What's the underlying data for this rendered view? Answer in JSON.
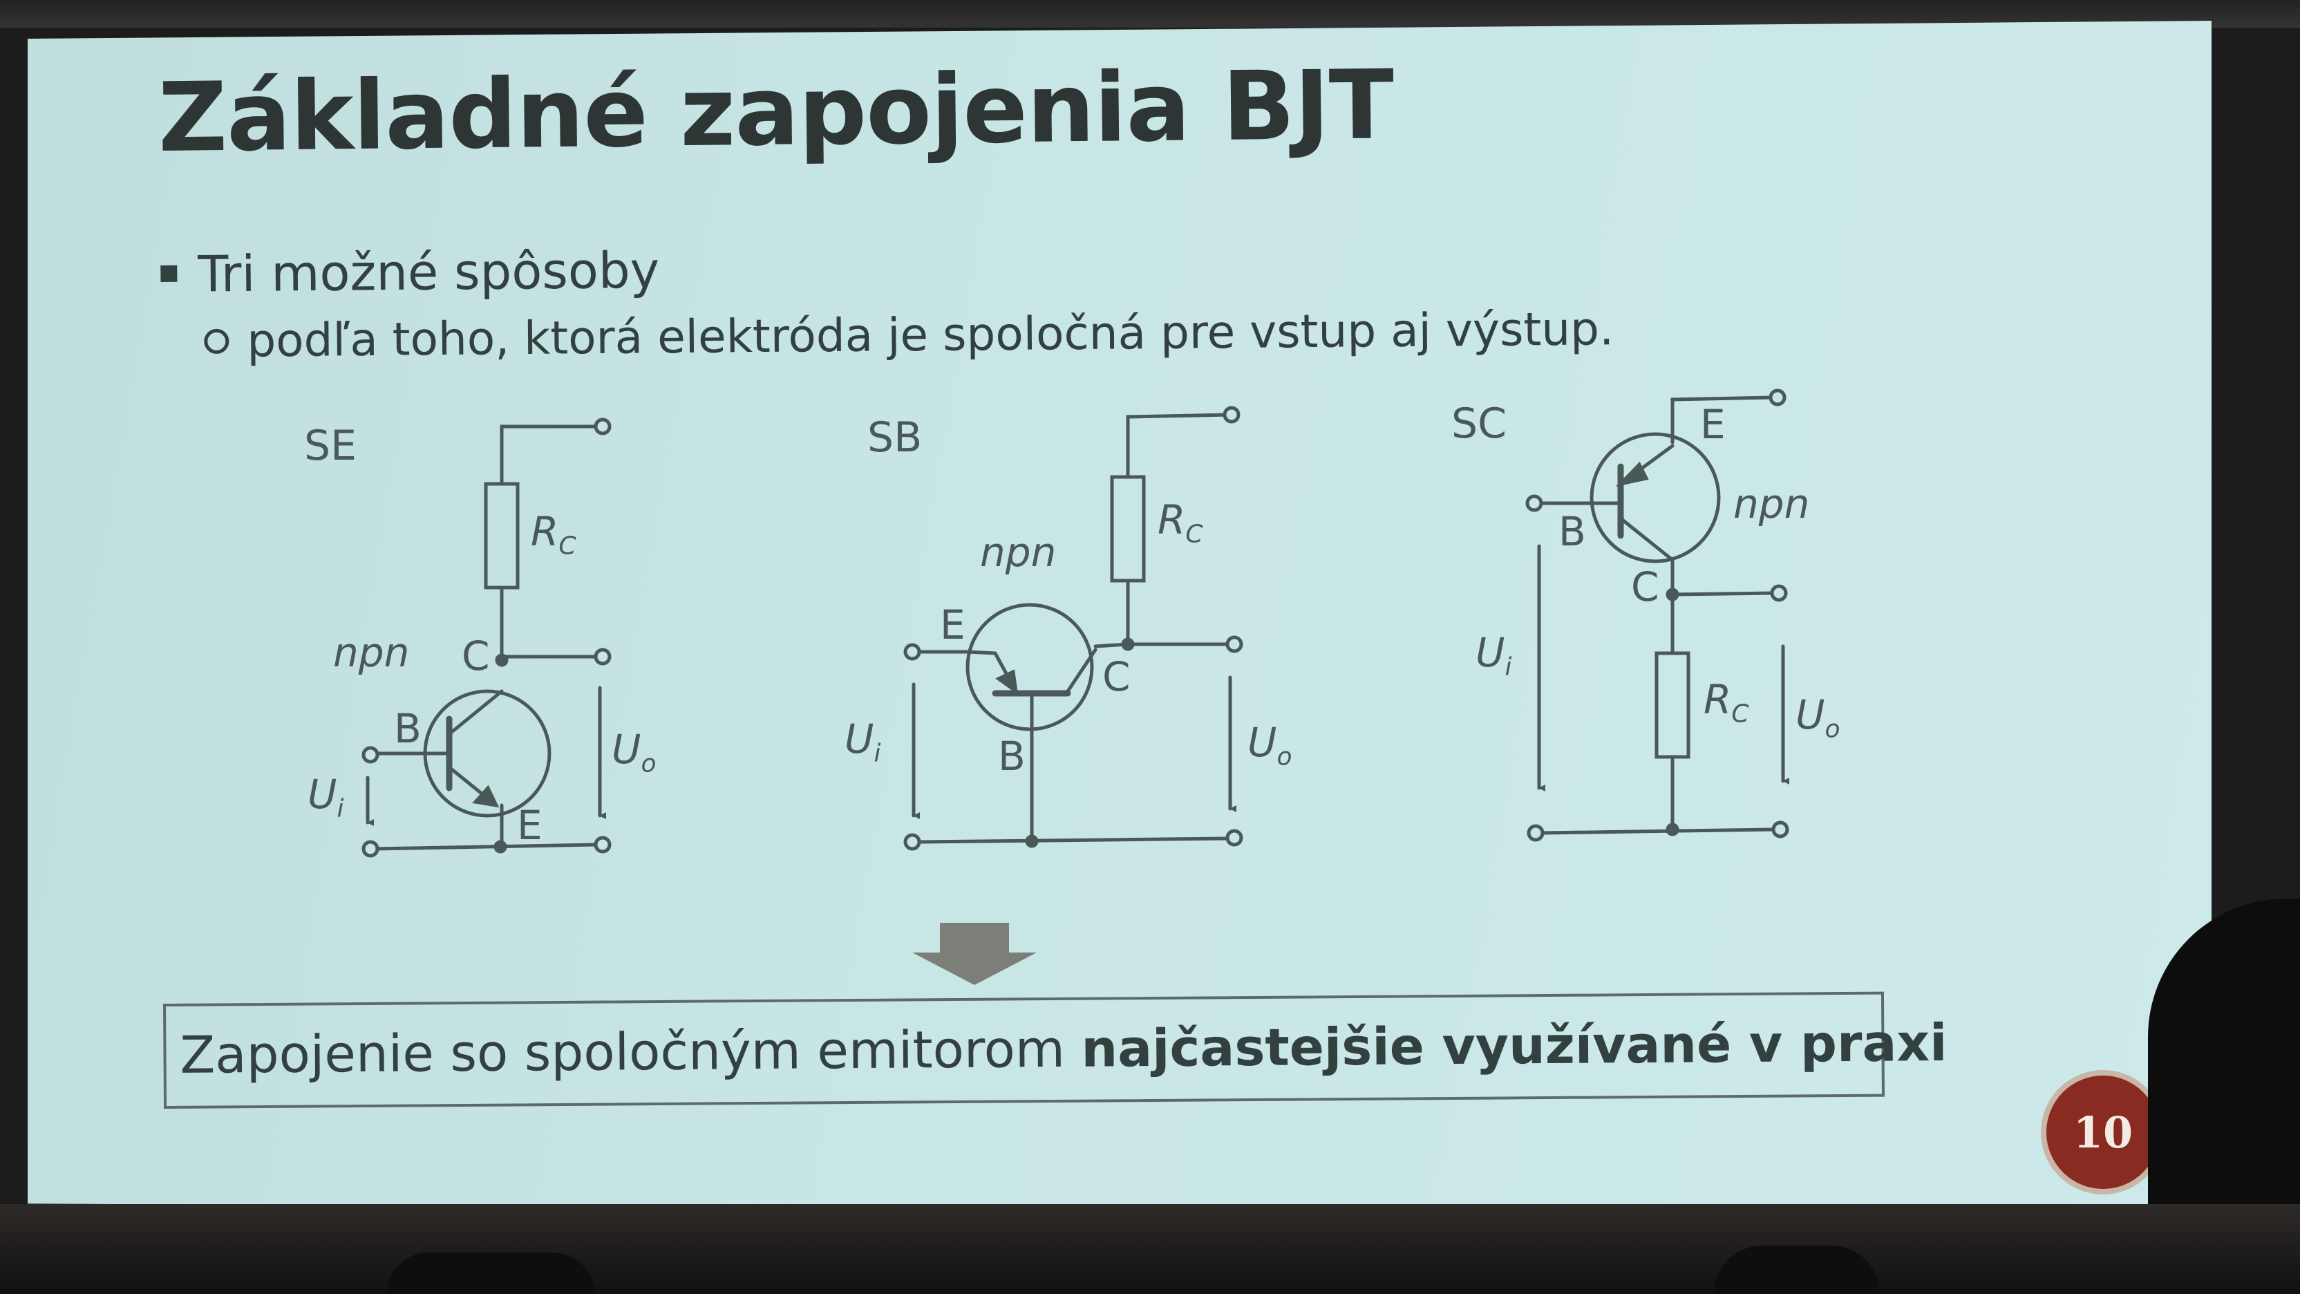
{
  "slide": {
    "title": "Základné zapojenia BJT",
    "bullet": "Tri možné spôsoby",
    "sub_bullet": "podľa toho, ktorá elektróda je spoločná pre vstup aj výstup.",
    "circuits": [
      {
        "name": "SE",
        "resistor_label": "R",
        "resistor_sub": "C",
        "type_label": "npn",
        "terminals": {
          "collector": "C",
          "base": "B",
          "emitter": "E"
        },
        "input_label": "U",
        "input_sub": "i",
        "output_label": "U",
        "output_sub": "o"
      },
      {
        "name": "SB",
        "resistor_label": "R",
        "resistor_sub": "C",
        "type_label": "npn",
        "terminals": {
          "collector": "C",
          "base": "B",
          "emitter": "E"
        },
        "input_label": "U",
        "input_sub": "i",
        "output_label": "U",
        "output_sub": "o"
      },
      {
        "name": "SC",
        "resistor_label": "R",
        "resistor_sub": "C",
        "type_label": "npn",
        "terminals": {
          "collector": "C",
          "base": "B",
          "emitter": "E"
        },
        "input_label": "U",
        "input_sub": "i",
        "output_label": "U",
        "output_sub": "o"
      }
    ],
    "conclusion_normal": "Zapojenie so spoločným emitorom ",
    "conclusion_bold": "najčastejšie využívané v praxi",
    "page_number": "10",
    "badge_color": "#8a2b22",
    "slide_background": "#c9e6e6"
  }
}
